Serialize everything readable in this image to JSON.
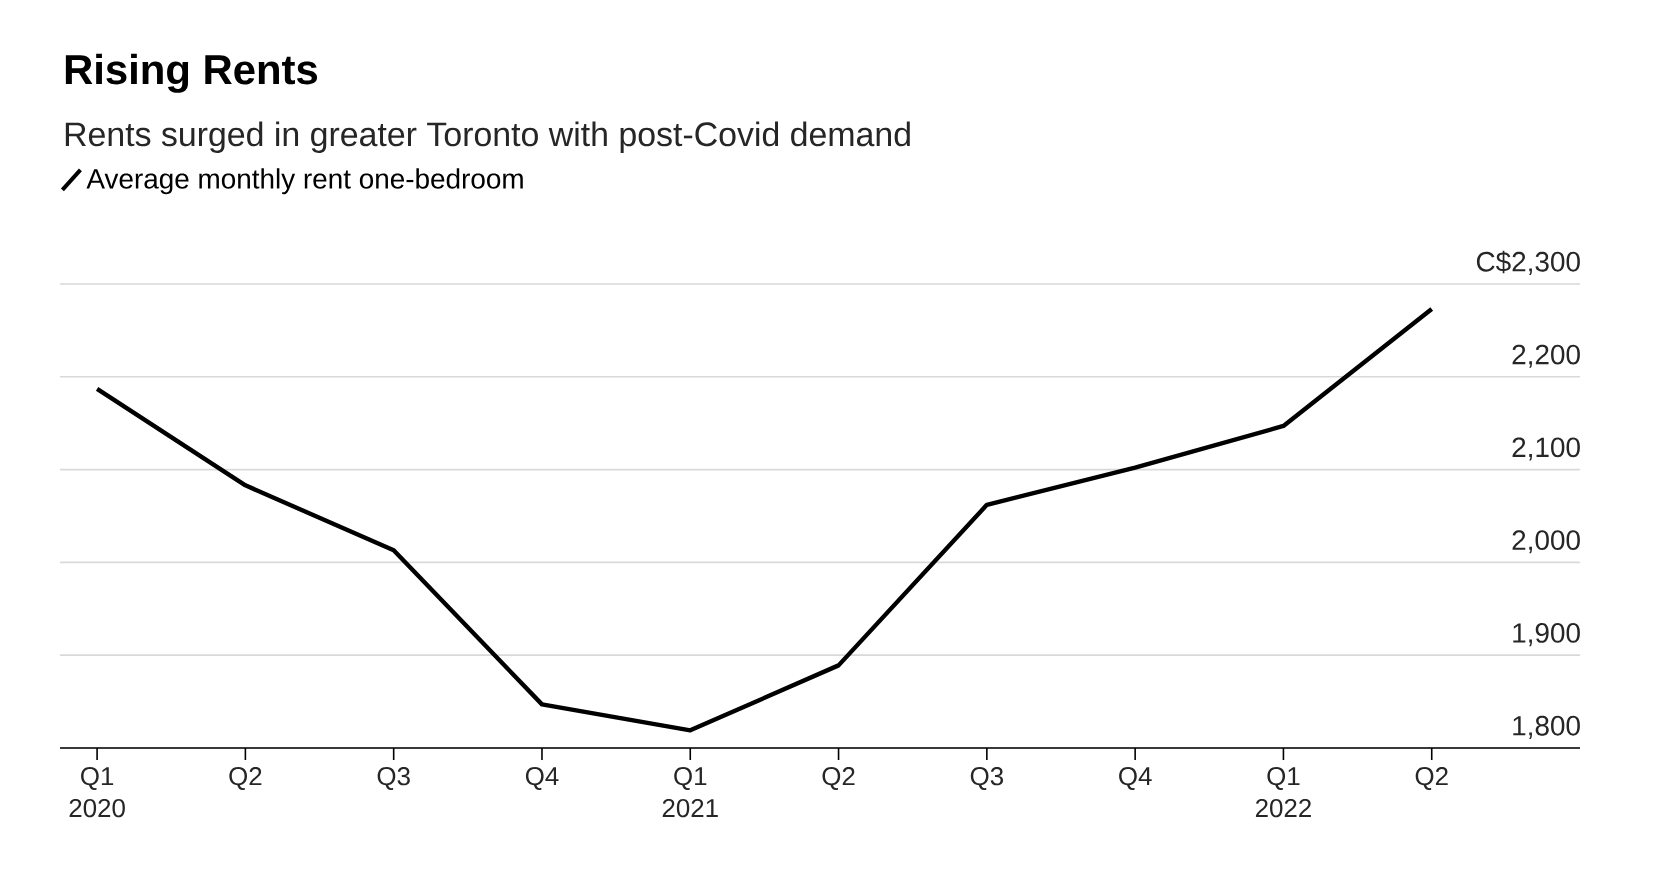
{
  "chart_data": {
    "type": "line",
    "title": "Rising Rents",
    "subtitle": "Rents surged in greater Toronto with post-Covid demand",
    "categories": [
      "Q1 2020",
      "Q2",
      "Q3",
      "Q4",
      "Q1 2021",
      "Q2",
      "Q3",
      "Q4",
      "Q1 2022",
      "Q2"
    ],
    "series": [
      {
        "name": "Average monthly rent one-bedroom",
        "color": "#000000",
        "values": [
          2187,
          2083,
          2013,
          1847,
          1819,
          1889,
          2062,
          2102,
          2147,
          2273
        ]
      }
    ],
    "ylim": [
      1800,
      2300
    ],
    "yticks": [
      {
        "value": 1800,
        "label": "1,800"
      },
      {
        "value": 1900,
        "label": "1,900"
      },
      {
        "value": 2000,
        "label": "2,000"
      },
      {
        "value": 2100,
        "label": "2,100"
      },
      {
        "value": 2200,
        "label": "2,200"
      },
      {
        "value": 2300,
        "label": "C$2,300"
      }
    ],
    "grid": "y",
    "legend": "top left",
    "marker": "none",
    "line_style": "solid"
  }
}
